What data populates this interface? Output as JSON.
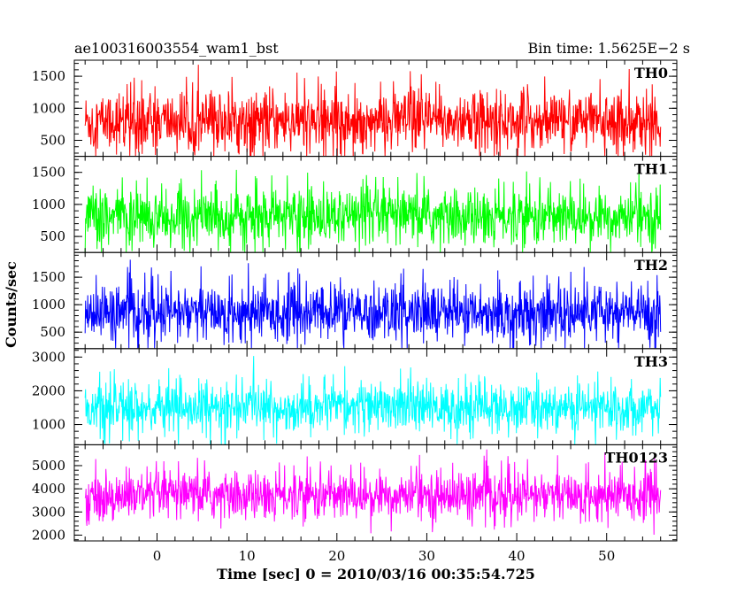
{
  "header": {
    "title": "ae100316003554_wam1_bst",
    "bin_time": "Bin time: 1.5625E−2 s"
  },
  "chart_data": {
    "type": "line",
    "xlabel": "Time [sec] 0 = 2010/03/16 00:35:54.725",
    "ylabel": "Counts/sec",
    "xlim": [
      -9.2,
      57.8
    ],
    "xticks": [
      0,
      10,
      20,
      30,
      40,
      50
    ],
    "x_range": [
      -8.0,
      56.0
    ],
    "grid": false,
    "panels": [
      {
        "name": "TH0",
        "color": "#ff0000",
        "ylim": [
          250,
          1750
        ],
        "yticks": [
          500,
          1000,
          1500
        ],
        "baseline": 800,
        "spread": 420,
        "low": 180,
        "high": 1720
      },
      {
        "name": "TH1",
        "color": "#00ff00",
        "ylim": [
          250,
          1750
        ],
        "yticks": [
          500,
          1000,
          1500
        ],
        "baseline": 800,
        "spread": 400,
        "low": 200,
        "high": 1730
      },
      {
        "name": "TH2",
        "color": "#0000ff",
        "ylim": [
          200,
          1950
        ],
        "yticks": [
          500,
          1000,
          1500
        ],
        "baseline": 850,
        "spread": 460,
        "low": 150,
        "high": 1950
      },
      {
        "name": "TH3",
        "color": "#00ffff",
        "ylim": [
          400,
          3250
        ],
        "yticks": [
          1000,
          2000,
          3000
        ],
        "baseline": 1500,
        "spread": 650,
        "low": 400,
        "high": 3200
      },
      {
        "name": "TH0123",
        "color": "#ff00ff",
        "ylim": [
          1750,
          5900
        ],
        "yticks": [
          2000,
          3000,
          4000,
          5000
        ],
        "baseline": 3700,
        "spread": 950,
        "low": 1750,
        "high": 5900
      }
    ]
  }
}
